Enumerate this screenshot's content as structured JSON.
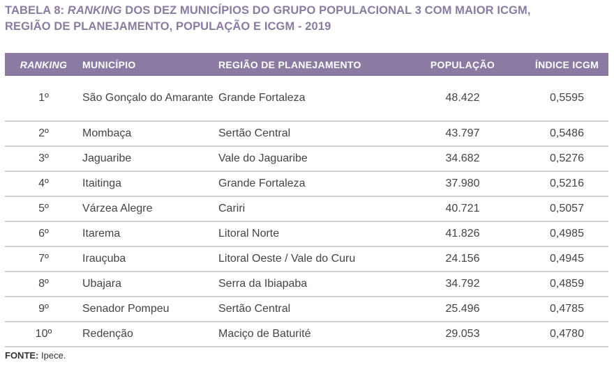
{
  "title": {
    "prefix": "TABELA 8: ",
    "italic": "RANKING",
    "rest": " DOS DEZ MUNICÍPIOS DO GRUPO POPULACIONAL 3 COM MAIOR ICGM, REGIÃO DE PLANEJAMENTO, POPULAÇÃO E ICGM - 2019"
  },
  "headers": [
    "RANKING",
    "MUNICÍPIO",
    "REGIÃO DE PLANEJAMENTO",
    "POPULAÇÃO",
    "ÍNDICE ICGM"
  ],
  "rows": [
    [
      "1º",
      "São Gonçalo do Amarante",
      "Grande Fortaleza",
      "48.422",
      "0,5595"
    ],
    [
      "2º",
      "Mombaça",
      "Sertão Central",
      "43.797",
      "0,5486"
    ],
    [
      "3º",
      "Jaguaribe",
      "Vale do Jaguaribe",
      "34.682",
      "0,5276"
    ],
    [
      "4º",
      "Itaitinga",
      "Grande Fortaleza",
      "37.980",
      "0,5216"
    ],
    [
      "5º",
      "Várzea Alegre",
      "Cariri",
      "40.721",
      "0,5057"
    ],
    [
      "6º",
      "Itarema",
      "Litoral Norte",
      "41.826",
      "0,4985"
    ],
    [
      "7º",
      "Irauçuba",
      "Litoral Oeste / Vale do Curu",
      "24.156",
      "0,4945"
    ],
    [
      "8º",
      "Ubajara",
      "Serra da Ibiapaba",
      "34.792",
      "0,4859"
    ],
    [
      "9º",
      "Senador Pompeu",
      "Sertão Central",
      "25.496",
      "0,4785"
    ],
    [
      "10º",
      "Redenção",
      "Maciço de Baturité",
      "29.053",
      "0,4780"
    ]
  ],
  "source": {
    "label": "FONTE:",
    "text": " Ipece."
  },
  "colors": {
    "header_bg": "#8b7ba3",
    "title": "#8a7ba2"
  }
}
